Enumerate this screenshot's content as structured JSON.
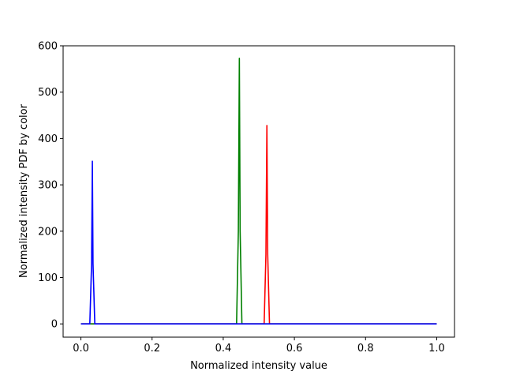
{
  "chart_data": {
    "type": "line",
    "title": "",
    "xlabel": "Normalized intensity value",
    "ylabel": "Normalized intensity PDF by color",
    "xlim": [
      -0.05,
      1.05
    ],
    "ylim": [
      -28.6,
      600
    ],
    "xticks": [
      0.0,
      0.2,
      0.4,
      0.6,
      0.8,
      1.0
    ],
    "xtick_labels": [
      "0.0",
      "0.2",
      "0.4",
      "0.6",
      "0.8",
      "1.0"
    ],
    "yticks": [
      0,
      100,
      200,
      300,
      400,
      500,
      600
    ],
    "ytick_labels": [
      "0",
      "100",
      "200",
      "300",
      "400",
      "500",
      "600"
    ],
    "grid": false,
    "legend": "none",
    "series": [
      {
        "color": "#ff0000",
        "x": [
          0.0,
          0.515,
          0.52,
          0.5227,
          0.525,
          0.53,
          1.0
        ],
        "y": [
          0,
          0,
          150,
          428,
          150,
          0,
          0
        ]
      },
      {
        "color": "#008000",
        "x": [
          0.0,
          0.4375,
          0.4425,
          0.4453,
          0.4475,
          0.4525,
          1.0
        ],
        "y": [
          0,
          0,
          200,
          573,
          200,
          0,
          0
        ]
      },
      {
        "color": "#0000ff",
        "x": [
          0.0,
          0.025,
          0.03,
          0.0322,
          0.034,
          0.039,
          1.0
        ],
        "y": [
          0,
          0,
          130,
          351,
          130,
          0,
          0
        ]
      }
    ]
  }
}
